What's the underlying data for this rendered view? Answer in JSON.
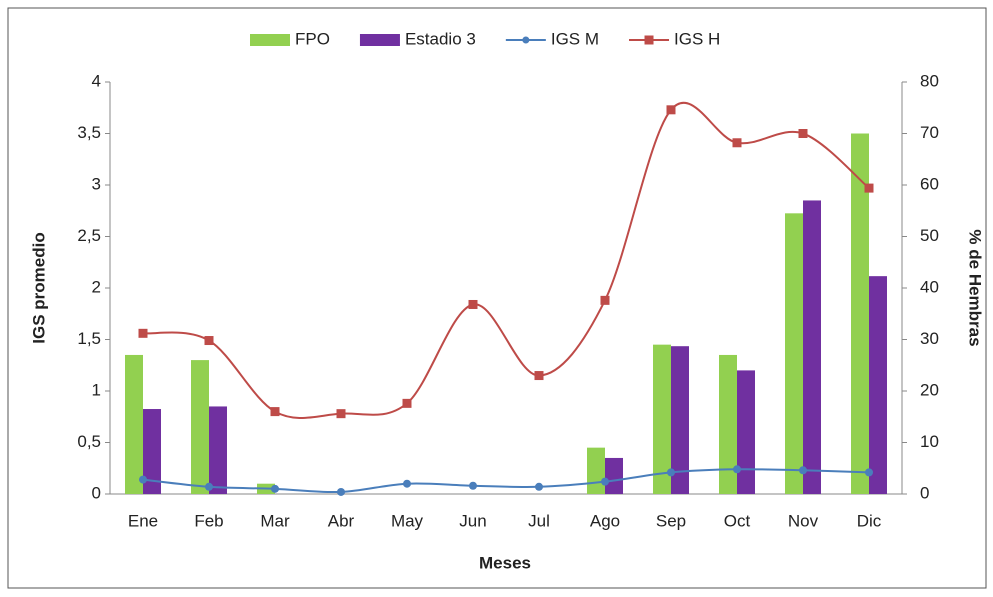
{
  "chart_data": {
    "type": "bar-line",
    "categories": [
      "Ene",
      "Feb",
      "Mar",
      "Abr",
      "May",
      "Jun",
      "Jul",
      "Ago",
      "Sep",
      "Oct",
      "Nov",
      "Dic"
    ],
    "series": [
      {
        "name": "FPO",
        "type": "bar",
        "axis": "y2",
        "color": "#92d050",
        "values": [
          27,
          26,
          2,
          0,
          0,
          0,
          0,
          9,
          29,
          27,
          54.5,
          70
        ]
      },
      {
        "name": "Estadio 3",
        "type": "bar",
        "axis": "y2",
        "color": "#7030a0",
        "values": [
          16.5,
          17,
          0,
          0,
          0,
          0,
          0,
          7,
          28.7,
          24,
          57,
          42.3
        ]
      },
      {
        "name": "IGS M",
        "type": "line",
        "marker": "circle",
        "color": "#4a7ebb",
        "values": [
          0.14,
          0.07,
          0.05,
          0.02,
          0.1,
          0.08,
          0.07,
          0.12,
          0.21,
          0.24,
          0.23,
          0.21
        ]
      },
      {
        "name": "IGS H",
        "type": "line",
        "marker": "square",
        "color": "#be4b48",
        "values": [
          1.56,
          1.49,
          0.8,
          0.78,
          0.88,
          1.84,
          1.15,
          1.88,
          3.73,
          3.41,
          3.5,
          2.97
        ]
      }
    ],
    "xlabel": "Meses",
    "ylabel": "IGS promedio",
    "y2label": "% de Hembras",
    "ylim": [
      0,
      4
    ],
    "yticks": [
      0,
      {
        "value": 0.5,
        "label": "0,5"
      },
      1,
      {
        "value": 1.5,
        "label": "1,5"
      },
      2,
      {
        "value": 2.5,
        "label": "2,5"
      },
      3,
      {
        "value": 3.5,
        "label": "3,5"
      },
      4
    ],
    "y2lim": [
      0,
      80
    ],
    "y2ticks": [
      0,
      10,
      20,
      30,
      40,
      50,
      60,
      70,
      80
    ],
    "legend": "top",
    "smooth": true
  }
}
